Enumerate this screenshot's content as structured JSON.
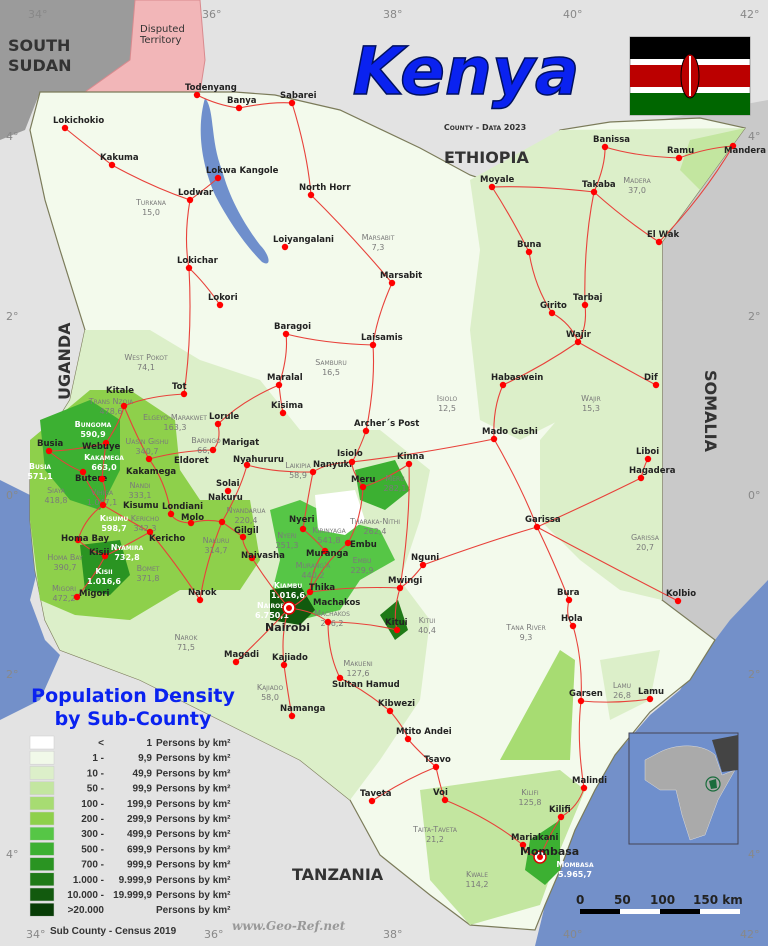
{
  "title": "Kenya",
  "subtitle": "County - Data 2023",
  "countries": {
    "south_sudan": [
      "SOUTH",
      "SUDAN"
    ],
    "disputed": [
      "Disputed",
      "Territory"
    ],
    "ethiopia": "ETHIOPIA",
    "uganda": "UGANDA",
    "somalia": "SOMALIA",
    "tanzania": "TANZANIA"
  },
  "coords": {
    "lon": [
      "34°",
      "36°",
      "38°",
      "40°",
      "42°"
    ],
    "lat": [
      "4°",
      "2°",
      "0°",
      "2°",
      "4°"
    ]
  },
  "colors": {
    "lake": "#6f8fcc",
    "ocean": "#7390c9",
    "road": "#e8413a",
    "town": "#ff0000",
    "neighbor": "#e3e3e3",
    "somalia": "#c9c9c9",
    "south_sudan": "#9b9b9b",
    "disputed": "#f2b6b8",
    "title": "#0a22f0"
  },
  "legend": {
    "title": [
      "Population Density",
      "by Sub-County"
    ],
    "unit": "Persons by km²",
    "items": [
      {
        "from": "<",
        "to": "1",
        "color": "#ffffff"
      },
      {
        "from": "1 -",
        "to": "9,9",
        "color": "#f1f9e9"
      },
      {
        "from": "10 -",
        "to": "49,9",
        "color": "#dcefc9"
      },
      {
        "from": "50 -",
        "to": "99,9",
        "color": "#c3e6a0"
      },
      {
        "from": "100 -",
        "to": "199,9",
        "color": "#a7dc72"
      },
      {
        "from": "200 -",
        "to": "299,9",
        "color": "#8ed04b"
      },
      {
        "from": "300 -",
        "to": "499,9",
        "color": "#56c646"
      },
      {
        "from": "500 -",
        "to": "699,9",
        "color": "#3cb032"
      },
      {
        "from": "700 -",
        "to": "999,9",
        "color": "#2a9422"
      },
      {
        "from": "1.000 -",
        "to": "9.999,9",
        "color": "#1f7a17"
      },
      {
        "from": "10.000 -",
        "to": "19.999,9",
        "color": "#125a0e"
      },
      {
        "from": ">20.000",
        "to": "",
        "color": "#083d06"
      }
    ],
    "source": "Sub County - Census 2019"
  },
  "counties": [
    {
      "name": "Turkana",
      "value": "15,0"
    },
    {
      "name": "Marsabit",
      "value": "7,3"
    },
    {
      "name": "West Pokot",
      "value": "74,1"
    },
    {
      "name": "Samburu",
      "value": "16,5"
    },
    {
      "name": "Isiolo",
      "value": "12,5"
    },
    {
      "name": "Wajir",
      "value": "15,3"
    },
    {
      "name": "Madera",
      "value": "37,0"
    },
    {
      "name": "Garissa",
      "value": "20,7"
    },
    {
      "name": "Tana River",
      "value": "9,3"
    },
    {
      "name": "Lamu",
      "value": "26,8"
    },
    {
      "name": "Kilifi",
      "value": "125,8"
    },
    {
      "name": "Taita-Taveta",
      "value": "21,2"
    },
    {
      "name": "Kwale",
      "value": "114,2"
    },
    {
      "name": "Mombasa",
      "value": "5.965,7"
    },
    {
      "name": "Kitui",
      "value": "40,4"
    },
    {
      "name": "Makueni",
      "value": "127,6"
    },
    {
      "name": "Kajiado",
      "value": "58,0"
    },
    {
      "name": "Narok",
      "value": "71,5"
    },
    {
      "name": "Machakos",
      "value": "246,2"
    },
    {
      "name": "Nairobi",
      "value": "6.750,1"
    },
    {
      "name": "Kiambu",
      "value": "1.016,6"
    },
    {
      "name": "Laikipia",
      "value": "58,9"
    },
    {
      "name": "Meru",
      "value": "282,1"
    },
    {
      "name": "Tharaka-Nithi",
      "value": "262,4"
    },
    {
      "name": "Embu",
      "value": "229,9"
    },
    {
      "name": "Murang'a",
      "value": "440,2"
    },
    {
      "name": "Nyeri",
      "value": "251,3"
    },
    {
      "name": "Kirinyaga",
      "value": "541,8"
    },
    {
      "name": "Nyandarua",
      "value": "220,4"
    },
    {
      "name": "Nakuru",
      "value": "314,7"
    },
    {
      "name": "Baringo",
      "value": "66,8"
    },
    {
      "name": "Elgeyo-Marakwet",
      "value": "163,3"
    },
    {
      "name": "Uasin Gishu",
      "value": "340,7"
    },
    {
      "name": "Nandi",
      "value": "333,1"
    },
    {
      "name": "Trans Nzoia",
      "value": "478,6"
    },
    {
      "name": "Bungoma",
      "value": "590,9"
    },
    {
      "name": "Busia",
      "value": "571,1"
    },
    {
      "name": "Kakamega",
      "value": "663,0"
    },
    {
      "name": "Siaya",
      "value": "418,8"
    },
    {
      "name": "Vihiga",
      "value": "1.047,1"
    },
    {
      "name": "Kisumu",
      "value": "598,7"
    },
    {
      "name": "Kericho",
      "value": "342,3"
    },
    {
      "name": "Homa Bay",
      "value": "390,7"
    },
    {
      "name": "Nyamira",
      "value": "732,8"
    },
    {
      "name": "Kisii",
      "value": "1.016,6"
    },
    {
      "name": "Bomet",
      "value": "371,8"
    },
    {
      "name": "Migori",
      "value": "472,2"
    }
  ],
  "towns": [
    "Lokichokio",
    "Kakuma",
    "Lokwa Kangole",
    "Todenyang",
    "Banya",
    "Sabarei",
    "Lodwar",
    "North Horr",
    "Loiyangalani",
    "Lokichar",
    "Lokori",
    "Marsabit",
    "Baragoi",
    "Laisamis",
    "Maralal",
    "Kisima",
    "Tot",
    "Lorule",
    "Marigat",
    "Kitale",
    "Busia",
    "Webuye",
    "Butere",
    "Kakamega",
    "Eldoret",
    "Kisumu",
    "Londiani",
    "Molo",
    "Nakuru",
    "Solai",
    "Nyahururu",
    "Gilgil",
    "Naivasha",
    "Kericho",
    "Homa Bay",
    "Kisii",
    "Migori",
    "Narok",
    "Nanyuki",
    "Isiolo",
    "Meru",
    "Kinna",
    "Nyeri",
    "Embu",
    "Muranga",
    "Thika",
    "Nairobi",
    "Machakos",
    "Kitui",
    "Mwingi",
    "Nguni",
    "Magadi",
    "Kajiado",
    "Sultan Hamud",
    "Namanga",
    "Kibwezi",
    "Mtito Andei",
    "Tsavo",
    "Voi",
    "Taveta",
    "Mariakani",
    "Mombasa",
    "Kilifi",
    "Malindi",
    "Garsen",
    "Lamu",
    "Hola",
    "Bura",
    "Kolbio",
    "Garissa",
    "Hagadera",
    "Dif",
    "Liboi",
    "Habaswein",
    "Mado Gashi",
    "Wajir",
    "Girito",
    "Tarbaj",
    "Buna",
    "Moyale",
    "Takaba",
    "El Wak",
    "Banissa",
    "Ramu",
    "Mandera",
    "Archer´s Post"
  ],
  "scale": {
    "labels": [
      "0",
      "50",
      "100",
      "150 km"
    ]
  },
  "website": "www.Geo-Ref.net"
}
